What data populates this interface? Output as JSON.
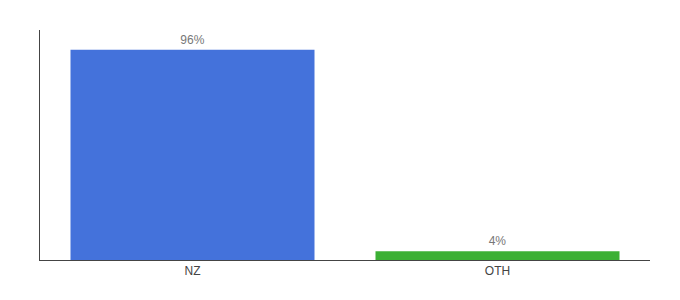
{
  "chart_data": {
    "type": "bar",
    "categories": [
      "NZ",
      "OTH"
    ],
    "values": [
      96,
      4
    ],
    "value_labels": [
      "96%",
      "4%"
    ],
    "colors": [
      "#4472db",
      "#3cb034"
    ],
    "ylim": [
      0,
      105
    ],
    "data_labels": true,
    "tick_labels": "x",
    "grid": false
  }
}
